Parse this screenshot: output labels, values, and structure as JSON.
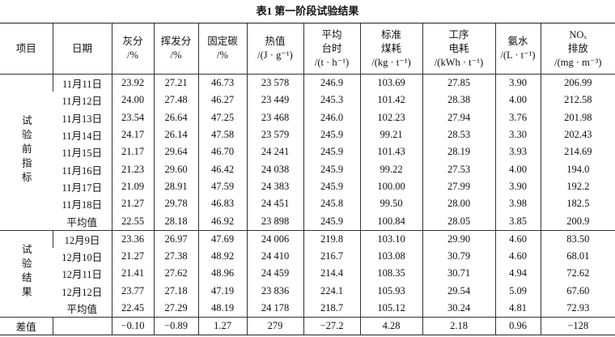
{
  "title": "表1  第一阶段试验结果",
  "table": {
    "header": [
      [
        "项目"
      ],
      [
        "日期"
      ],
      [
        "灰分",
        "/%"
      ],
      [
        "挥发分",
        "/%"
      ],
      [
        "固定碳",
        "/%"
      ],
      [
        "热值",
        "/(J · g⁻¹)"
      ],
      [
        "平均",
        "台时",
        "/(t · h⁻¹)"
      ],
      [
        "标准",
        "煤耗",
        "/(kg · t⁻¹)"
      ],
      [
        "工序",
        "电耗",
        "/(kWh · t⁻¹)"
      ],
      [
        "氨水",
        "/(L · t⁻¹)"
      ],
      [
        "NOₓ",
        "排放",
        "/(mg · m⁻³)"
      ]
    ],
    "groups": [
      {
        "label": "试验前指标",
        "rows": [
          [
            "11月11日",
            "23.92",
            "27.21",
            "46.73",
            "23 578",
            "246.9",
            "103.69",
            "27.85",
            "3.90",
            "206.99"
          ],
          [
            "11月12日",
            "24.00",
            "27.48",
            "46.27",
            "23 449",
            "245.3",
            "101.42",
            "28.38",
            "4.00",
            "212.58"
          ],
          [
            "11月13日",
            "23.54",
            "26.64",
            "47.25",
            "23 468",
            "246.0",
            "102.23",
            "27.94",
            "3.76",
            "201.98"
          ],
          [
            "11月14日",
            "24.17",
            "26.14",
            "47.58",
            "23 579",
            "245.9",
            "99.21",
            "28.53",
            "3.30",
            "202.43"
          ],
          [
            "11月15日",
            "21.17",
            "29.64",
            "46.70",
            "24 241",
            "245.9",
            "101.43",
            "28.19",
            "3.93",
            "214.69"
          ],
          [
            "11月16日",
            "21.23",
            "29.60",
            "46.42",
            "24 038",
            "245.9",
            "99.22",
            "27.53",
            "4.00",
            "194.0"
          ],
          [
            "11月17日",
            "21.09",
            "28.91",
            "47.59",
            "24 383",
            "245.9",
            "100.00",
            "27.99",
            "3.90",
            "192.2"
          ],
          [
            "11月18日",
            "21.27",
            "29.78",
            "46.83",
            "24 451",
            "245.8",
            "99.50",
            "28.00",
            "3.98",
            "182.5"
          ],
          [
            "平均值",
            "22.55",
            "28.18",
            "46.92",
            "23 898",
            "245.9",
            "100.84",
            "28.05",
            "3.85",
            "200.9"
          ]
        ]
      },
      {
        "label": "试验结果",
        "rows": [
          [
            "12月9日",
            "23.36",
            "26.97",
            "47.69",
            "24 006",
            "219.8",
            "103.10",
            "29.90",
            "4.60",
            "83.50"
          ],
          [
            "12月10日",
            "21.27",
            "27.38",
            "48.92",
            "24 410",
            "216.7",
            "103.08",
            "30.79",
            "4.60",
            "68.01"
          ],
          [
            "12月11日",
            "21.41",
            "27.62",
            "48.96",
            "24 459",
            "214.4",
            "108.35",
            "30.71",
            "4.94",
            "72.62"
          ],
          [
            "12月12日",
            "23.77",
            "27.18",
            "47.19",
            "23 836",
            "224.1",
            "105.93",
            "29.54",
            "5.09",
            "67.60"
          ],
          [
            "平均值",
            "22.45",
            "27.29",
            "48.19",
            "24 178",
            "218.7",
            "105.12",
            "30.24",
            "4.81",
            "72.93"
          ]
        ]
      }
    ],
    "diff": {
      "label": "差值",
      "values": [
        "−0.10",
        "−0.89",
        "1.27",
        "279",
        "−27.2",
        "4.28",
        "2.18",
        "0.96",
        "−128"
      ]
    }
  }
}
